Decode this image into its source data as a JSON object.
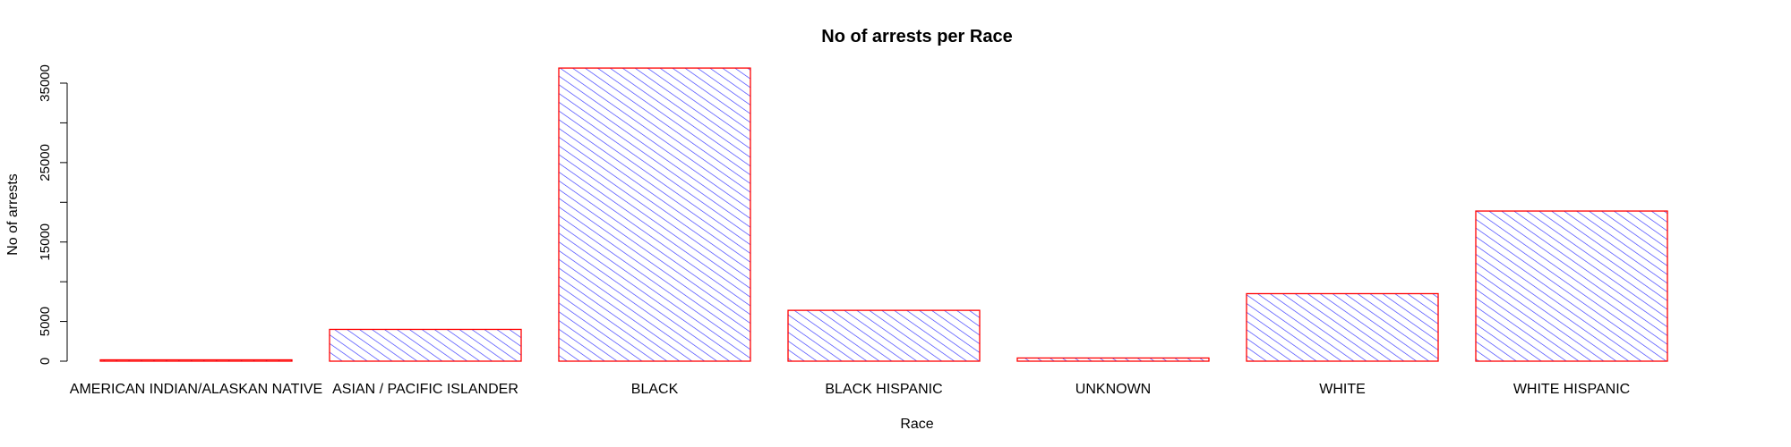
{
  "chart_data": {
    "type": "bar",
    "title": "No of arrests per Race",
    "xlabel": "Race",
    "ylabel": "No of arrests",
    "categories": [
      "AMERICAN INDIAN/ALASKAN NATIVE",
      "ASIAN / PACIFIC ISLANDER",
      "BLACK",
      "BLACK HISPANIC",
      "UNKNOWN",
      "WHITE",
      "WHITE HISPANIC"
    ],
    "values": [
      150,
      4000,
      36900,
      6400,
      400,
      8500,
      18900
    ],
    "ylim": [
      0,
      35000
    ],
    "yticks": [
      0,
      5000,
      15000,
      25000,
      35000
    ],
    "grid": false,
    "bar_fill": "hatched",
    "hatch_color": "#3333ff",
    "border_color": "#ff0000"
  }
}
